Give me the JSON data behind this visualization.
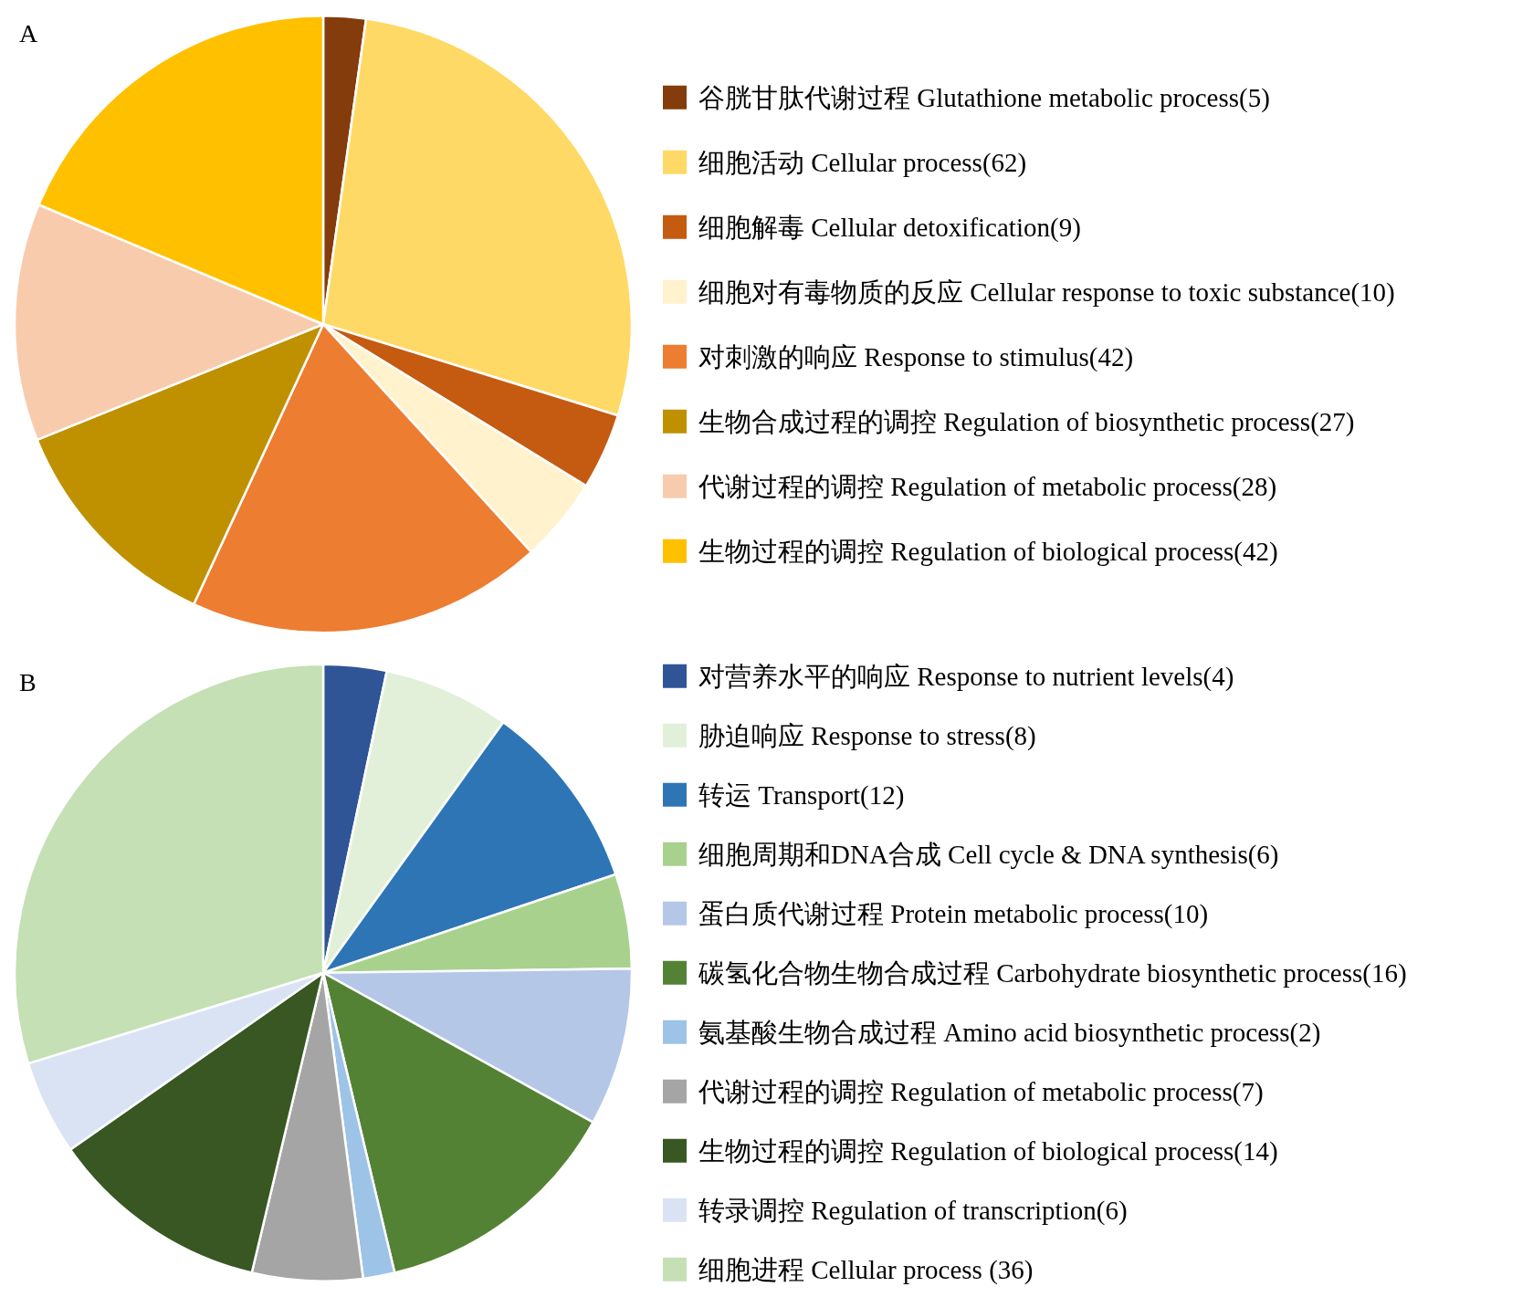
{
  "chart_data": [
    {
      "type": "pie",
      "title": "A",
      "legend": "right",
      "categories": [
        "谷胱甘肽代谢过程 Glutathione metabolic process(5)",
        "细胞活动 Cellular process(62)",
        "细胞解毒 Cellular detoxification(9)",
        "细胞对有毒物质的反应 Cellular response to toxic substance(10)",
        "对刺激的响应 Response to stimulus(42)",
        "生物合成过程的调控 Regulation of biosynthetic process(27)",
        "代谢过程的调控 Regulation of metabolic process(28)",
        "生物过程的调控 Regulation of biological process(42)"
      ],
      "values": [
        5,
        62,
        9,
        10,
        42,
        27,
        28,
        42
      ],
      "colors": [
        "#843c0c",
        "#ffd966",
        "#c55a11",
        "#fff2cc",
        "#ed7d31",
        "#bf9000",
        "#f8cbad",
        "#ffc000"
      ]
    },
    {
      "type": "pie",
      "title": "B",
      "legend": "right",
      "categories": [
        "对营养水平的响应 Response to nutrient levels(4)",
        "胁迫响应 Response to stress(8)",
        "转运 Transport(12)",
        "细胞周期和DNA合成 Cell cycle & DNA synthesis(6)",
        "蛋白质代谢过程 Protein metabolic process(10)",
        "碳氢化合物生物合成过程 Carbohydrate biosynthetic process(16)",
        "氨基酸生物合成过程 Amino acid biosynthetic process(2)",
        "代谢过程的调控 Regulation of metabolic process(7)",
        "生物过程的调控 Regulation of biological process(14)",
        "转录调控 Regulation of transcription(6)",
        "细胞进程 Cellular process (36)"
      ],
      "values": [
        4,
        8,
        12,
        6,
        10,
        16,
        2,
        7,
        14,
        6,
        36
      ],
      "colors": [
        "#2f5597",
        "#e2f0d9",
        "#2e75b6",
        "#a9d18e",
        "#b4c7e7",
        "#548235",
        "#9dc3e6",
        "#a5a5a5",
        "#385723",
        "#dae3f3",
        "#c5e0b4"
      ]
    }
  ]
}
